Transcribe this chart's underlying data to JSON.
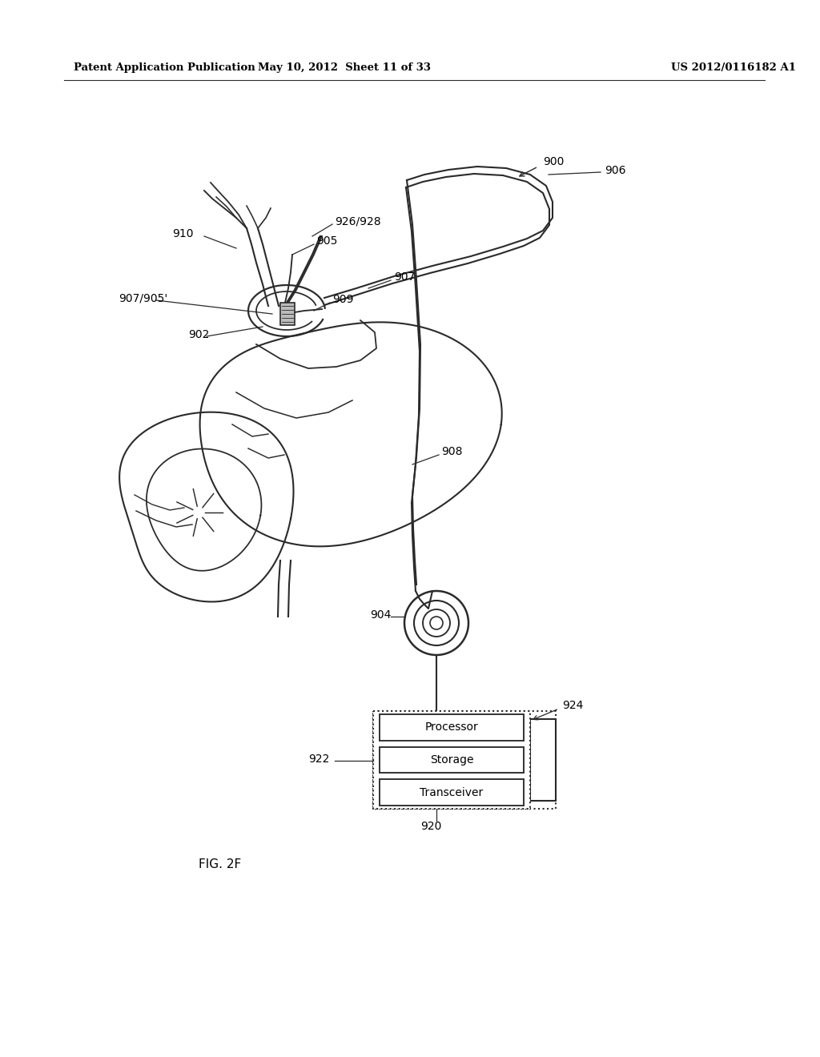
{
  "bg_color": "#ffffff",
  "header_left": "Patent Application Publication",
  "header_mid": "May 10, 2012  Sheet 11 of 33",
  "header_right": "US 2012/0116182 A1",
  "figure_label": "FIG. 2F",
  "box_components": [
    "Processor",
    "Storage",
    "Transceiver"
  ]
}
